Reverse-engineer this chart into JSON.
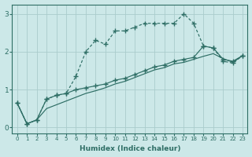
{
  "title": "",
  "xlabel": "Humidex (Indice chaleur)",
  "ylabel": "",
  "bg_color": "#cce8e8",
  "line_color": "#2e6e65",
  "grid_color": "#aacccc",
  "xlim": [
    -0.5,
    23.5
  ],
  "ylim": [
    -0.15,
    3.25
  ],
  "xticks": [
    0,
    1,
    2,
    3,
    4,
    5,
    6,
    7,
    8,
    9,
    10,
    11,
    12,
    13,
    14,
    15,
    16,
    17,
    18,
    19,
    20,
    21,
    22,
    23
  ],
  "yticks": [
    0,
    1,
    2,
    3
  ],
  "line1_x": [
    0,
    1,
    2,
    3,
    4,
    5,
    6,
    7,
    8,
    9,
    10,
    11,
    12,
    13,
    14,
    15,
    16,
    17,
    18,
    19,
    20,
    21,
    22,
    23
  ],
  "line1_y": [
    0.65,
    0.1,
    0.2,
    0.75,
    0.85,
    0.9,
    1.35,
    2.0,
    2.3,
    2.2,
    2.55,
    2.55,
    2.65,
    2.75,
    2.75,
    2.75,
    2.75,
    3.0,
    2.75,
    2.15,
    2.1,
    1.75,
    1.7,
    1.9
  ],
  "line2_x": [
    0,
    1,
    2,
    3,
    4,
    5,
    6,
    7,
    8,
    9,
    10,
    11,
    12,
    13,
    14,
    15,
    16,
    17,
    18,
    19,
    20,
    21,
    22,
    23
  ],
  "line2_y": [
    0.65,
    0.1,
    0.2,
    0.75,
    0.85,
    0.9,
    1.0,
    1.05,
    1.1,
    1.15,
    1.25,
    1.3,
    1.4,
    1.5,
    1.6,
    1.65,
    1.75,
    1.8,
    1.85,
    2.15,
    2.1,
    1.8,
    1.75,
    1.9
  ],
  "line3_x": [
    0,
    1,
    2,
    3,
    4,
    5,
    6,
    7,
    8,
    9,
    10,
    11,
    12,
    13,
    14,
    15,
    16,
    17,
    18,
    19,
    20,
    21,
    22,
    23
  ],
  "line3_y": [
    0.65,
    0.1,
    0.2,
    0.5,
    0.6,
    0.7,
    0.8,
    0.9,
    0.97,
    1.05,
    1.15,
    1.22,
    1.32,
    1.42,
    1.52,
    1.58,
    1.68,
    1.72,
    1.8,
    1.88,
    1.95,
    1.82,
    1.72,
    1.9
  ]
}
